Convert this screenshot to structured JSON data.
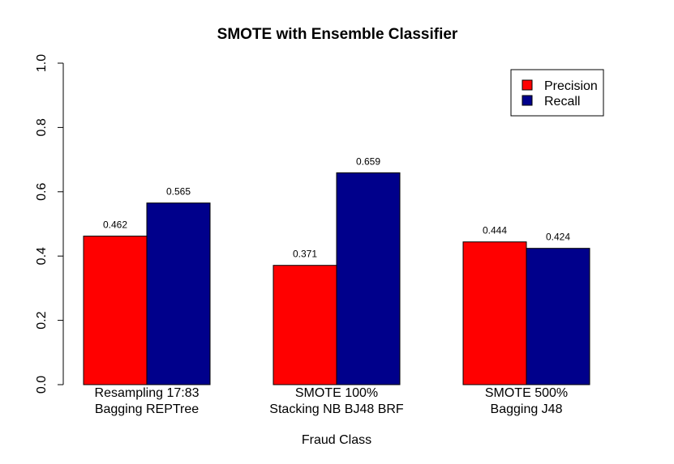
{
  "chart_data": {
    "type": "bar",
    "title": "SMOTE with Ensemble Classifier",
    "xlabel": "Fraud Class",
    "ylabel": "",
    "ylim": [
      0,
      1
    ],
    "yticks": [
      "0.0",
      "0.2",
      "0.4",
      "0.6",
      "0.8",
      "1.0"
    ],
    "categories": [
      [
        "Resampling 17:83",
        "Bagging REPTree"
      ],
      [
        "SMOTE 100%",
        "Stacking NB BJ48 BRF"
      ],
      [
        "SMOTE 500%",
        "Bagging J48"
      ]
    ],
    "series": [
      {
        "name": "Precision",
        "color": "#ff0000",
        "values": [
          0.462,
          0.371,
          0.444
        ],
        "labels": [
          "0.462",
          "0.371",
          "0.444"
        ]
      },
      {
        "name": "Recall",
        "color": "#00008b",
        "values": [
          0.565,
          0.659,
          0.424
        ],
        "labels": [
          "0.565",
          "0.659",
          "0.424"
        ]
      }
    ],
    "legend_position": "top-right",
    "grid": false
  }
}
